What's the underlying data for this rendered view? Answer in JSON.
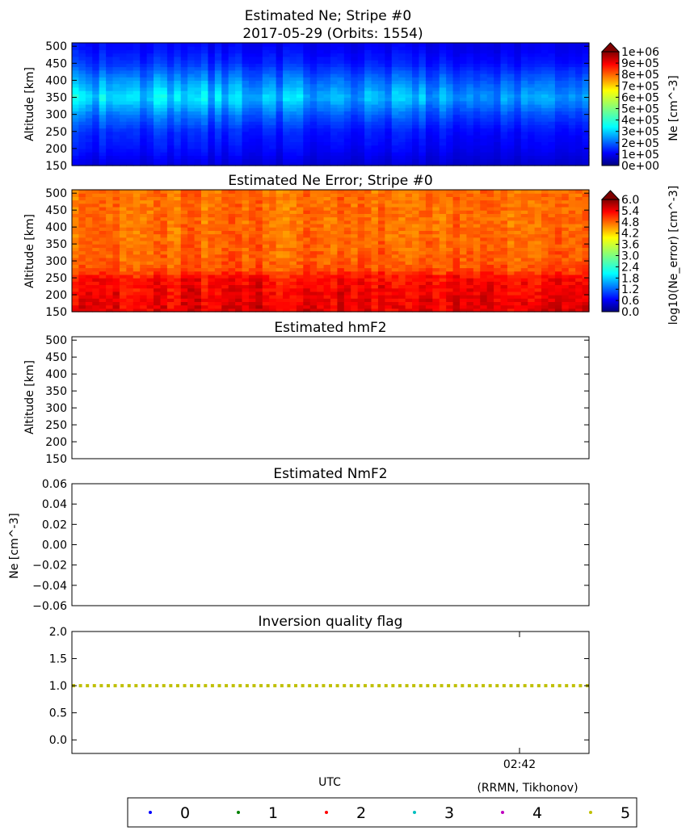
{
  "figure": {
    "title_line1": "Estimated Ne; Stripe #0",
    "title_line2": "2017-05-29 (Orbits: 1554)",
    "xlabel": "UTC",
    "credit": "(RRMN, Tikhonov)",
    "x_tick_label": "02:42"
  },
  "chart_data": [
    {
      "type": "heatmap",
      "title": "",
      "ylabel": "Altitude [km]",
      "ylim": [
        150,
        510
      ],
      "yticks": [
        "150",
        "200",
        "250",
        "300",
        "350",
        "400",
        "450",
        "500"
      ],
      "colorbar": {
        "label": "Ne [cm^-3]",
        "range": [
          0,
          1000000
        ],
        "ticks": [
          "0e+00",
          "1e+05",
          "2e+05",
          "3e+05",
          "4e+05",
          "5e+05",
          "6e+05",
          "7e+05",
          "8e+05",
          "9e+05",
          "1e+06"
        ],
        "extend": "max",
        "colormap": "jet"
      },
      "profile_altitudes_km": [
        150,
        200,
        250,
        300,
        350,
        400,
        450,
        500
      ],
      "profile_values": [
        100000,
        150000,
        180000,
        260000,
        380000,
        290000,
        190000,
        140000
      ]
    },
    {
      "type": "heatmap",
      "title": "Estimated Ne Error; Stripe #0",
      "ylabel": "Altitude [km]",
      "ylim": [
        150,
        510
      ],
      "yticks": [
        "150",
        "200",
        "250",
        "300",
        "350",
        "400",
        "450",
        "500"
      ],
      "colorbar": {
        "label": "log10(Ne_error) [cm^-3]",
        "range": [
          0.0,
          6.0
        ],
        "ticks": [
          "0.0",
          "0.6",
          "1.2",
          "1.8",
          "2.4",
          "3.0",
          "3.6",
          "4.2",
          "4.8",
          "5.4",
          "6.0"
        ],
        "extend": "max",
        "colormap": "jet"
      },
      "profile_altitudes_km": [
        150,
        200,
        250,
        275,
        300,
        400,
        500
      ],
      "profile_values": [
        5.4,
        5.3,
        5.2,
        4.8,
        4.7,
        4.6,
        4.6
      ]
    },
    {
      "type": "scatter",
      "title": "Estimated hmF2",
      "ylabel": "Altitude [km]",
      "ylim": [
        150,
        510
      ],
      "yticks": [
        "150",
        "200",
        "250",
        "300",
        "350",
        "400",
        "450",
        "500"
      ],
      "points": []
    },
    {
      "type": "scatter",
      "title": "Estimated NmF2",
      "ylabel": "Ne [cm^-3]",
      "ylim": [
        -0.06,
        0.06
      ],
      "yticks": [
        "−0.06",
        "−0.04",
        "−0.02",
        "0.00",
        "0.02",
        "0.04",
        "0.06"
      ],
      "points": []
    },
    {
      "type": "scatter",
      "title": "Inversion quality flag",
      "ylabel": "",
      "ylim": [
        -0.25,
        2.0
      ],
      "yticks": [
        "0.0",
        "0.5",
        "1.0",
        "1.5",
        "2.0"
      ],
      "series": [
        {
          "name": "5",
          "color": "#bfbf00",
          "n_points": 75,
          "value": 1.0
        }
      ]
    }
  ],
  "legend": {
    "entries": [
      {
        "label": "0",
        "color": "#0000ff"
      },
      {
        "label": "1",
        "color": "#008000"
      },
      {
        "label": "2",
        "color": "#ff0000"
      },
      {
        "label": "3",
        "color": "#00bfbf"
      },
      {
        "label": "4",
        "color": "#bf00bf"
      },
      {
        "label": "5",
        "color": "#bfbf00"
      }
    ]
  }
}
